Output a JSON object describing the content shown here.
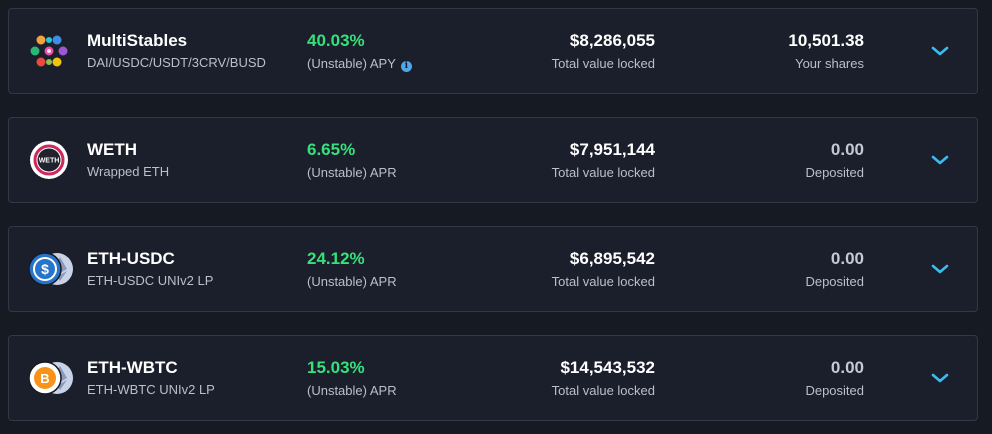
{
  "colors": {
    "background": "#161a23",
    "card": "#1b1f2b",
    "border": "#333847",
    "rate_green": "#36e07a",
    "label_grey": "#b9bfcc",
    "chevron_blue": "#3bbcf0"
  },
  "vaults": [
    {
      "icon": "multistables-logo",
      "name": "MultiStables",
      "subtitle": "DAI/USDC/USDT/3CRV/BUSD",
      "rate": "40.03%",
      "rate_label": "(Unstable) APY",
      "info_icon": "info-icon",
      "tvl": "$8,286,055",
      "tvl_label": "Total value locked",
      "position": "10,501.38",
      "position_label": "Your shares"
    },
    {
      "icon": "weth-logo",
      "name": "WETH",
      "subtitle": "Wrapped ETH",
      "logo_text": "WETH",
      "rate": "6.65%",
      "rate_label": "(Unstable) APR",
      "tvl": "$7,951,144",
      "tvl_label": "Total value locked",
      "position": "0.00",
      "position_label": "Deposited"
    },
    {
      "icon": "usdc-eth-logo",
      "name": "ETH-USDC",
      "subtitle": "ETH-USDC UNIv2 LP",
      "rate": "24.12%",
      "rate_label": "(Unstable) APR",
      "tvl": "$6,895,542",
      "tvl_label": "Total value locked",
      "position": "0.00",
      "position_label": "Deposited"
    },
    {
      "icon": "wbtc-eth-logo",
      "name": "ETH-WBTC",
      "subtitle": "ETH-WBTC UNIv2 LP",
      "rate": "15.03%",
      "rate_label": "(Unstable) APR",
      "tvl": "$14,543,532",
      "tvl_label": "Total value locked",
      "position": "0.00",
      "position_label": "Deposited"
    }
  ]
}
